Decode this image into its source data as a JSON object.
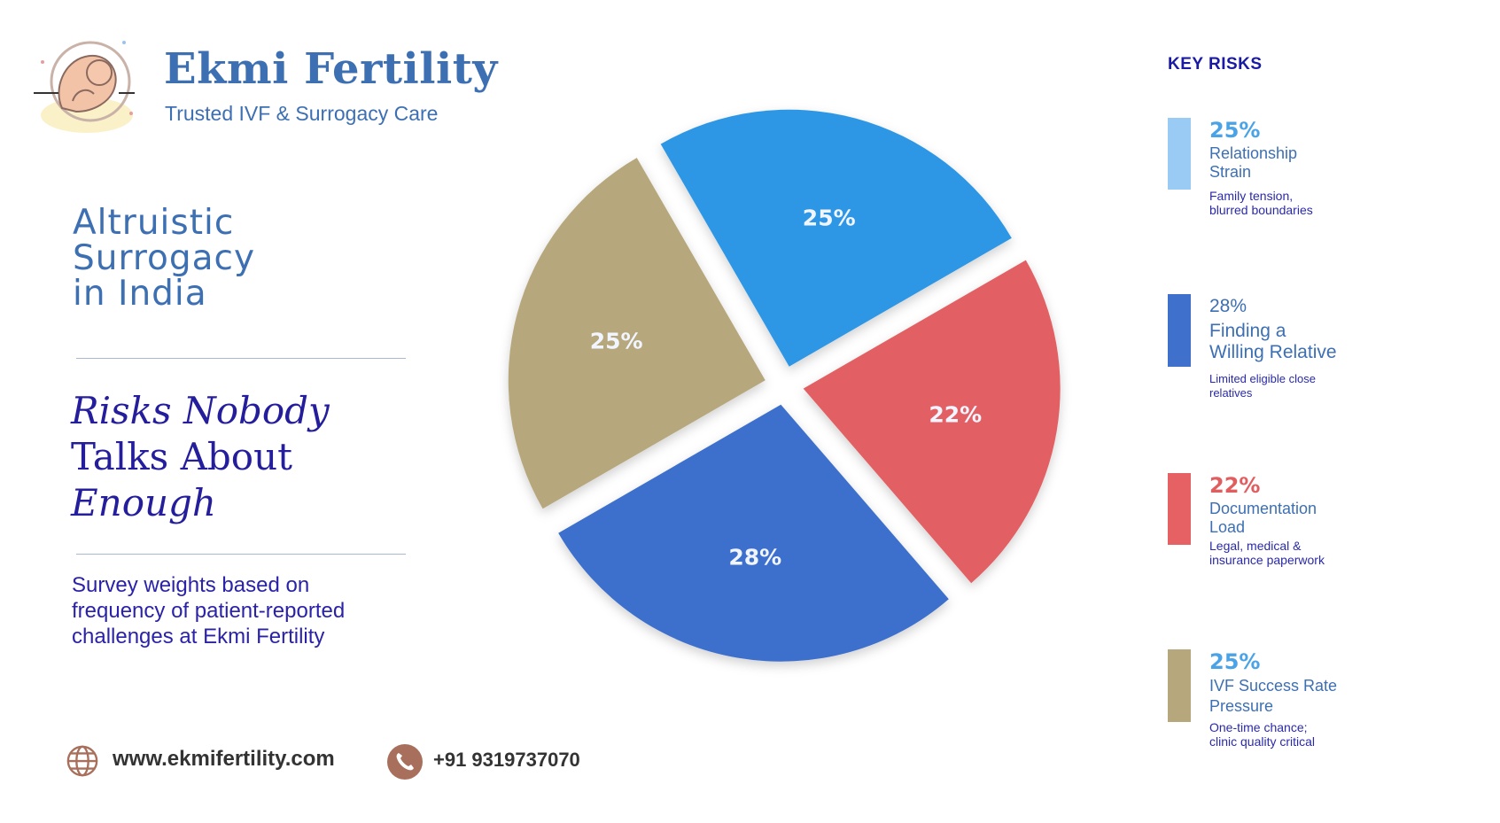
{
  "brand": {
    "name": "Ekmi Fertility",
    "tagline": "Trusted IVF & Surrogacy Care",
    "logo_icon": "fetus-logo-icon"
  },
  "title": {
    "line1": "Altruistic",
    "line2": "Surrogacy",
    "line3": "in India"
  },
  "subtitle": {
    "line1": "Risks Nobody",
    "line2": "Talks About",
    "line3": "Enough"
  },
  "note": "Survey weights based on frequency of patient-reported challenges at Ekmi Fertility",
  "footer": {
    "website": "www.ekmifertility.com",
    "phone": "+91 9319737070",
    "website_icon": "globe-icon",
    "phone_icon": "phone-icon"
  },
  "legend": {
    "title": "KEY RISKS",
    "items": [
      {
        "pct": "25%",
        "label": "Relationship\nStrain",
        "desc": "Family tension,\nblurred boundaries",
        "color": "#9acbf4",
        "pct_color": "#4aa3e6"
      },
      {
        "pct": "28%",
        "label": "Finding a\nWilling Relative",
        "desc": "Limited eligible close\nrelatives",
        "color": "#3e70cc",
        "pct_color": "#3d6fb3"
      },
      {
        "pct": "22%",
        "label": "Documentation\nLoad",
        "desc": "Legal, medical &\ninsurance paperwork",
        "color": "#e56163",
        "pct_color": "#e05e60"
      },
      {
        "pct": "25%",
        "label": "IVF Success Rate\nPressure",
        "desc": "One-time chance;\nclinic quality critical",
        "color": "#b6a77c",
        "pct_color": "#4aa3e6"
      }
    ]
  },
  "chart_data": {
    "type": "pie",
    "title": "",
    "slices": [
      {
        "label": "Relationship Strain",
        "value": 25,
        "display": "25%",
        "color": "#2f97e5"
      },
      {
        "label": "Documentation Load",
        "value": 22,
        "display": "22%",
        "color": "#e26163"
      },
      {
        "label": "Finding a Willing Relative",
        "value": 28,
        "display": "28%",
        "color": "#3c6fcc"
      },
      {
        "label": "IVF Success Rate Pressure",
        "value": 25,
        "display": "25%",
        "color": "#b6a77c"
      }
    ],
    "exploded": true,
    "legend_position": "right"
  }
}
